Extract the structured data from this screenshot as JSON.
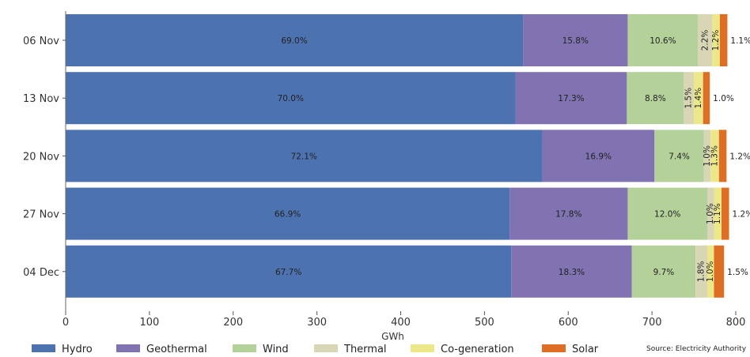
{
  "chart_data": {
    "type": "bar",
    "orientation": "horizontal",
    "stacked": true,
    "categories": [
      "06 Nov",
      "13 Nov",
      "20 Nov",
      "27 Nov",
      "04 Dec"
    ],
    "xlabel": "GWh",
    "ylabel": "",
    "xlim": [
      0,
      800
    ],
    "xticks": [
      0,
      100,
      200,
      300,
      400,
      500,
      600,
      700,
      800
    ],
    "grid": false,
    "legend_position": "bottom",
    "source": "Source: Electricity Authority",
    "series": [
      {
        "name": "Hydro",
        "color": "#4c72b0",
        "values": [
          546,
          537,
          569,
          530,
          532
        ],
        "labels": [
          "69.0%",
          "70.0%",
          "72.1%",
          "66.9%",
          "67.7%"
        ]
      },
      {
        "name": "Geothermal",
        "color": "#8172b2",
        "values": [
          125,
          133,
          134,
          141,
          144
        ],
        "labels": [
          "15.8%",
          "17.3%",
          "16.9%",
          "17.8%",
          "18.3%"
        ]
      },
      {
        "name": "Wind",
        "color": "#b5d19a",
        "values": [
          84,
          68,
          59,
          95,
          76
        ],
        "labels": [
          "10.6%",
          "8.8%",
          "7.4%",
          "12.0%",
          "9.7%"
        ]
      },
      {
        "name": "Thermal",
        "color": "#d8d6b5",
        "values": [
          17,
          12,
          8,
          8,
          14
        ],
        "labels": [
          "2.2%",
          "1.5%",
          "1.0%",
          "1.0%",
          "1.8%"
        ]
      },
      {
        "name": "Co-generation",
        "color": "#ece88a",
        "values": [
          9,
          11,
          10,
          9,
          8
        ],
        "labels": [
          "1.2%",
          "1.4%",
          "1.3%",
          "1.1%",
          "1.0%"
        ]
      },
      {
        "name": "Solar",
        "color": "#dd6e24",
        "values": [
          9,
          8,
          9,
          9,
          12
        ],
        "labels": [
          "1.1%",
          "1.0%",
          "1.2%",
          "1.2%",
          "1.5%"
        ]
      }
    ]
  }
}
